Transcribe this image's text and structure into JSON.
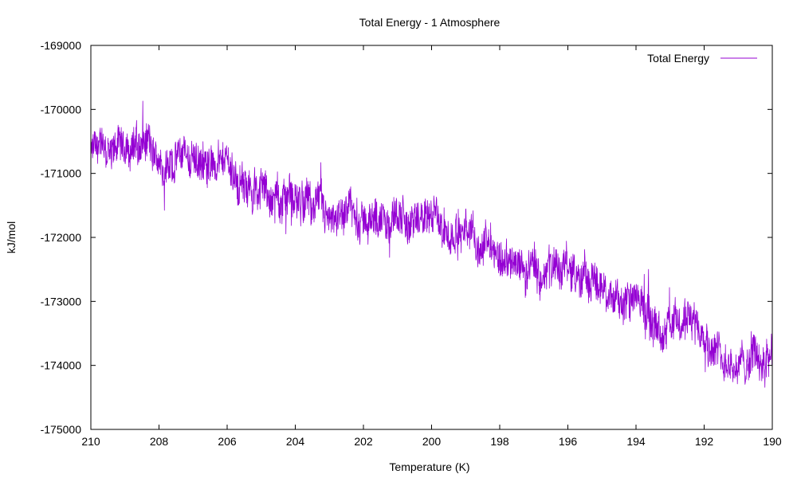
{
  "chart_data": {
    "type": "line",
    "title": "Total Energy - 1 Atmosphere",
    "xlabel": "Temperature (K)",
    "ylabel": "kJ/mol",
    "x_reversed": true,
    "xlim": [
      210,
      190
    ],
    "ylim": [
      -175000,
      -169000
    ],
    "xticks": [
      "210",
      "208",
      "206",
      "204",
      "202",
      "200",
      "198",
      "196",
      "194",
      "192",
      "190"
    ],
    "yticks": [
      "-169000",
      "-170000",
      "-171000",
      "-172000",
      "-173000",
      "-174000",
      "-175000"
    ],
    "grid": false,
    "legend_position": "top-right",
    "series": [
      {
        "name": "Total Energy",
        "color": "#9400d3",
        "trend": {
          "x": [
            210,
            209,
            208,
            207,
            206,
            205,
            204,
            203,
            202,
            201,
            200,
            199,
            198,
            197,
            196,
            195,
            194,
            193,
            192,
            191,
            190
          ],
          "y": [
            -170700,
            -170500,
            -170700,
            -170700,
            -171000,
            -171200,
            -171500,
            -171600,
            -171800,
            -171700,
            -171700,
            -171900,
            -172300,
            -172500,
            -172500,
            -172800,
            -173000,
            -173300,
            -173500,
            -173900,
            -173800
          ]
        }
      }
    ]
  }
}
